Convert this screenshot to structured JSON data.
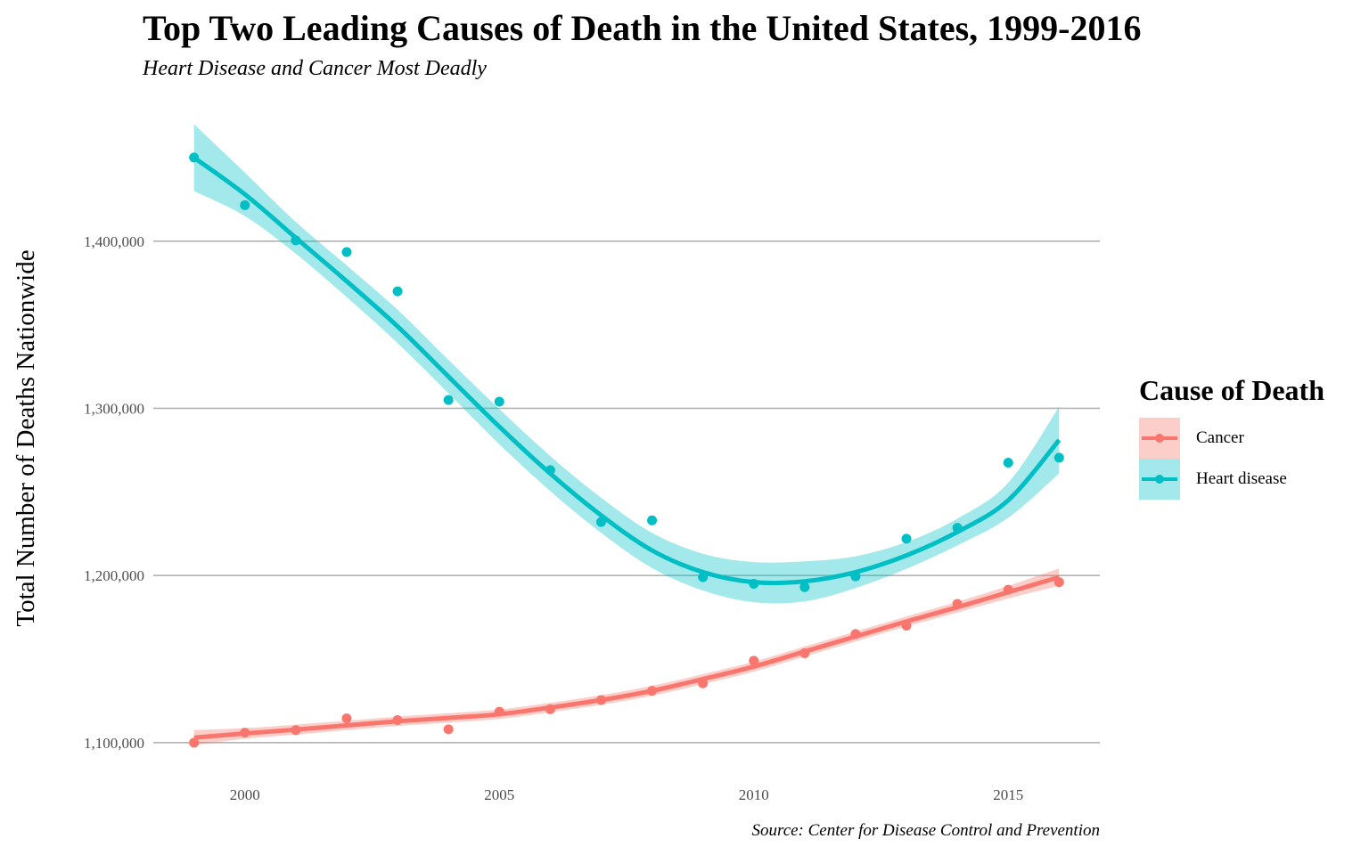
{
  "chart_data": {
    "type": "line",
    "title": "Top Two Leading Causes of Death in the United States, 1999-2016",
    "subtitle": "Heart Disease and Cancer Most Deadly",
    "caption": "Source: Center for Disease Control and Prevention",
    "xlabel": "",
    "ylabel": "Total Number of Deaths Nationwide",
    "xlim": [
      1998.2,
      2016.8
    ],
    "ylim": [
      1085000,
      1475000
    ],
    "x_ticks": [
      2000,
      2005,
      2010,
      2015
    ],
    "y_ticks": [
      1100000,
      1200000,
      1300000,
      1400000
    ],
    "y_tick_labels": [
      "1,100,000",
      "1,200,000",
      "1,300,000",
      "1,400,000"
    ],
    "x_tick_labels": [
      "2000",
      "2005",
      "2010",
      "2015"
    ],
    "grid": "horizontal major only",
    "legend_position": "right",
    "legend_title": "Cause of Death",
    "x": [
      1999,
      2000,
      2001,
      2002,
      2003,
      2004,
      2005,
      2006,
      2007,
      2008,
      2009,
      2010,
      2011,
      2012,
      2013,
      2014,
      2015,
      2016
    ],
    "series": [
      {
        "name": "Cancer",
        "color": "#F8766D",
        "band_color": "#F8766D",
        "points": [
          1100000,
          1106000,
          1107500,
          1114500,
          1113500,
          1108000,
          1118500,
          1120000,
          1125500,
          1131000,
          1135500,
          1149000,
          1153500,
          1165000,
          1170000,
          1183000,
          1191500,
          1196000
        ],
        "smooth": [
          1103000,
          1105500,
          1107800,
          1110300,
          1112800,
          1114800,
          1117000,
          1121000,
          1125500,
          1131000,
          1138000,
          1145500,
          1154500,
          1163500,
          1172500,
          1181000,
          1190000,
          1199000
        ],
        "band_half_width": [
          4500,
          3200,
          3000,
          2800,
          2800,
          2800,
          2800,
          2800,
          2900,
          3000,
          3000,
          3000,
          3000,
          3000,
          3000,
          3200,
          3800,
          5200
        ]
      },
      {
        "name": "Heart disease",
        "color": "#00BFC4",
        "band_color": "#00BFC4",
        "points": [
          1450000,
          1421500,
          1400500,
          1393500,
          1370000,
          1305000,
          1304000,
          1263000,
          1232000,
          1233000,
          1199000,
          1195000,
          1193000,
          1199500,
          1222000,
          1228500,
          1267500,
          1270500
        ],
        "smooth": [
          1450000,
          1428000,
          1402000,
          1376000,
          1349000,
          1319000,
          1289000,
          1261000,
          1236000,
          1215000,
          1202000,
          1196000,
          1196500,
          1202000,
          1212000,
          1226000,
          1245000,
          1281000
        ],
        "band_half_width": [
          20000,
          13000,
          9500,
          9500,
          10000,
          10000,
          10500,
          10500,
          10500,
          10500,
          11000,
          12000,
          12000,
          9500,
          8000,
          8000,
          10500,
          20000
        ]
      }
    ]
  }
}
